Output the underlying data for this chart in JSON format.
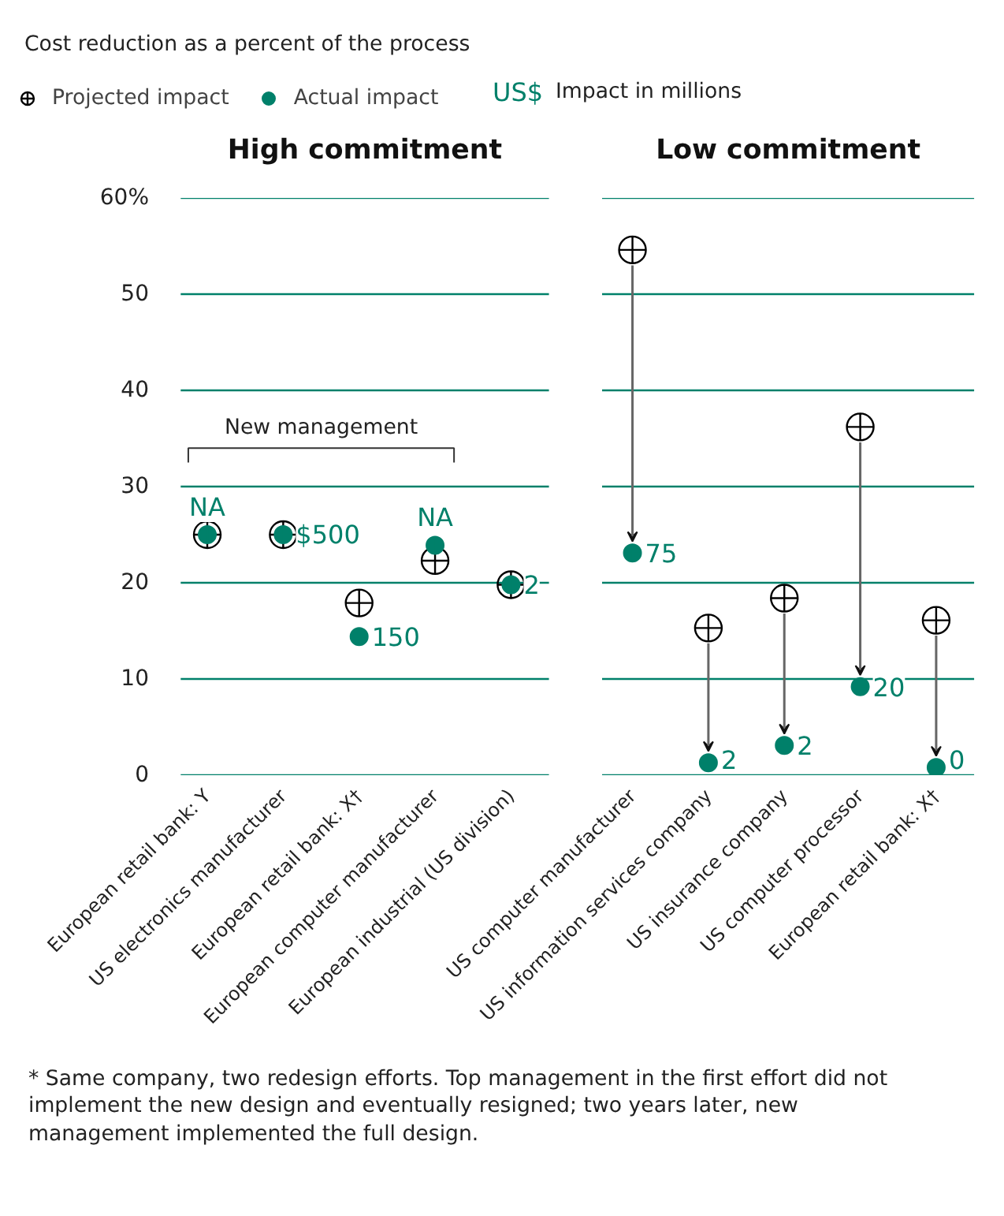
{
  "chart_data": [
    {
      "type": "scatter",
      "title": "High commitment",
      "ylabel": "Cost reduction as a percent of the process",
      "legend_title": "US$ Impact in millions",
      "categories": [
        "European retail bank: Y",
        "US electronics manufacturer",
        "European retail bank: X†",
        "European computer manufacturer",
        "European industrial (US division)"
      ],
      "series": [
        {
          "name": "Projected impact",
          "color": "#000000",
          "marker": "circle",
          "values": [
            25,
            25,
            17.9,
            22.3,
            19.8
          ]
        },
        {
          "name": "Actual impact",
          "color": "#00806a",
          "marker": "circle",
          "values": [
            25,
            25,
            14.4,
            23.9,
            19.8
          ]
        }
      ],
      "ylim": [
        0,
        60
      ],
      "yticks": [
        0,
        10,
        20,
        30,
        40,
        50,
        {
          "value": 60,
          "label": "60%"
        }
      ],
      "grid": "y",
      "legend": "top left",
      "annotations": [
        "New management",
        {
          "text": "NA",
          "x": "European retail bank: Y",
          "y": 25
        },
        {
          "text": "$500",
          "x": "US electronics manufacturer",
          "y": 25
        },
        {
          "text": "150",
          "x": "European retail bank: X†",
          "y": 14.4
        },
        {
          "text": "NA",
          "x": "European computer manufacturer",
          "y": 23.9
        },
        {
          "text": "2",
          "x": "European industrial (US division)",
          "y": 19.8
        }
      ]
    },
    {
      "type": "scatter",
      "title": "Low commitment",
      "categories": [
        "US computer manufacturer",
        "US information services company",
        "US insurance company",
        "US computer processor",
        "European retail bank: X†"
      ],
      "series": [
        {
          "color": "#000000",
          "marker": "circle",
          "values": [
            54.6,
            15.3,
            18.4,
            36.2,
            16.1
          ]
        },
        {
          "color": "#00806a",
          "marker": "circle",
          "values": [
            23.1,
            1.3,
            3.1,
            9.2,
            0.8
          ]
        }
      ],
      "ylim": [
        0,
        60
      ],
      "yticks": [
        0,
        10,
        20,
        30,
        40,
        50,
        60
      ],
      "grid": "y",
      "tick_labels": "x",
      "line_style": "solid",
      "annotations": [
        {
          "text": "75",
          "x": "US computer manufacturer",
          "y": 23.1
        },
        {
          "text": "2",
          "x": "US information services company",
          "y": 1.3
        },
        {
          "text": "2",
          "x": "US insurance company",
          "y": 3.1
        },
        {
          "text": "20",
          "x": "US computer processor",
          "y": 9.2
        },
        {
          "text": "0",
          "x": "European retail bank: X†",
          "y": 0.8
        },
        "* Same company, two redesign efforts. Top management in the first effort did not implement the new design and eventually resigned; two years later, new management implemented the full design."
      ]
    }
  ]
}
